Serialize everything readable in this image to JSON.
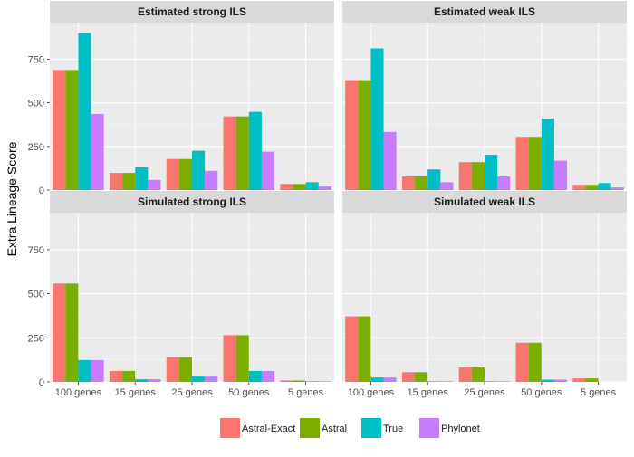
{
  "chart_data": {
    "type": "bar",
    "ylabel": "Extra Lineage Score",
    "xlabel": "",
    "categories": [
      "100 genes",
      "15 genes",
      "25 genes",
      "50 genes",
      "5 genes"
    ],
    "ylim": [
      0,
      960
    ],
    "yticks": [
      0,
      250,
      500,
      750
    ],
    "grid": true,
    "legend_position": "bottom",
    "colors": {
      "Astral-Exact": "#F8766D",
      "Astral": "#7CAE00",
      "True": "#00BFC4",
      "Phylonet": "#C77CFF"
    },
    "legend": [
      "Astral-Exact",
      "Astral",
      "True",
      "Phylonet"
    ],
    "panels": [
      {
        "title": "Estimated strong ILS",
        "series": [
          {
            "name": "Astral-Exact",
            "values": [
              688,
              98,
              178,
              422,
              35
            ]
          },
          {
            "name": "Astral",
            "values": [
              688,
              98,
              178,
              422,
              35
            ]
          },
          {
            "name": "True",
            "values": [
              900,
              130,
              225,
              448,
              45
            ]
          },
          {
            "name": "Phylonet",
            "values": [
              436,
              58,
              110,
              220,
              20
            ]
          }
        ]
      },
      {
        "title": "Estimated weak ILS",
        "series": [
          {
            "name": "Astral-Exact",
            "values": [
              630,
              78,
              160,
              305,
              30
            ]
          },
          {
            "name": "Astral",
            "values": [
              630,
              78,
              160,
              305,
              30
            ]
          },
          {
            "name": "True",
            "values": [
              812,
              118,
              202,
              410,
              40
            ]
          },
          {
            "name": "Phylonet",
            "values": [
              333,
              45,
              78,
              168,
              15
            ]
          }
        ]
      },
      {
        "title": "Simulated strong ILS",
        "series": [
          {
            "name": "Astral-Exact",
            "values": [
              558,
              62,
              140,
              265,
              8
            ]
          },
          {
            "name": "Astral",
            "values": [
              558,
              62,
              140,
              265,
              8
            ]
          },
          {
            "name": "True",
            "values": [
              124,
              15,
              30,
              62,
              3
            ]
          },
          {
            "name": "Phylonet",
            "values": [
              124,
              15,
              30,
              62,
              3
            ]
          }
        ]
      },
      {
        "title": "Simulated weak ILS",
        "series": [
          {
            "name": "Astral-Exact",
            "values": [
              372,
              55,
              82,
              222,
              20
            ]
          },
          {
            "name": "Astral",
            "values": [
              372,
              55,
              82,
              222,
              20
            ]
          },
          {
            "name": "True",
            "values": [
              25,
              3,
              3,
              13,
              0
            ]
          },
          {
            "name": "Phylonet",
            "values": [
              25,
              3,
              3,
              13,
              0
            ]
          }
        ]
      }
    ]
  }
}
